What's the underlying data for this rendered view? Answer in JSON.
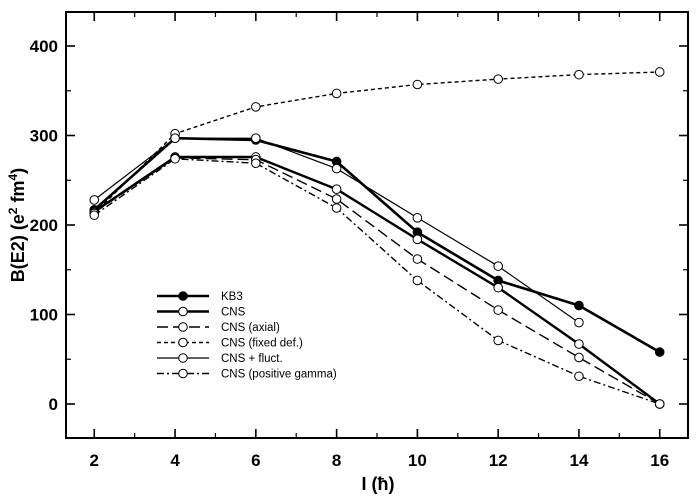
{
  "chart_data": {
    "type": "line",
    "title": "",
    "xlabel": "I (ħ)",
    "ylabel_parts": {
      "base": "B(E2) (e",
      "exp1": "2",
      "mid": " fm",
      "exp2": "4",
      "close": ")"
    },
    "xlim": [
      1.3,
      16.7
    ],
    "ylim": [
      -38,
      438
    ],
    "xticks": [
      2,
      4,
      6,
      8,
      10,
      12,
      14,
      16
    ],
    "yticks": [
      0,
      100,
      200,
      300,
      400
    ],
    "legend_position": "center-left",
    "series": [
      {
        "name": "KB3",
        "style": "kb3",
        "x": [
          2,
          4,
          6,
          8,
          10,
          12,
          14,
          16
        ],
        "y": [
          217,
          297,
          295,
          271,
          192,
          138,
          110,
          58
        ]
      },
      {
        "name": "CNS",
        "style": "cns",
        "x": [
          2,
          4,
          6,
          8,
          10,
          12,
          14,
          16
        ],
        "y": [
          215,
          276,
          276,
          240,
          184,
          130,
          67,
          0
        ]
      },
      {
        "name": "CNS (axial)",
        "style": "axial",
        "x": [
          2,
          4,
          6,
          8,
          10,
          12,
          14,
          16
        ],
        "y": [
          214,
          275,
          273,
          229,
          162,
          105,
          52,
          0
        ]
      },
      {
        "name": "CNS (fixed def.)",
        "style": "fixed",
        "x": [
          2,
          4,
          6,
          8,
          10,
          12,
          14,
          16
        ],
        "y": [
          213,
          302,
          332,
          347,
          357,
          363,
          368,
          371
        ]
      },
      {
        "name": "CNS + fluct.",
        "style": "fluct",
        "x": [
          2,
          4,
          6,
          8,
          10,
          12,
          14
        ],
        "y": [
          228,
          297,
          297,
          263,
          208,
          154,
          91
        ]
      },
      {
        "name": "CNS (positive gamma)",
        "style": "gamma",
        "x": [
          2,
          4,
          6,
          8,
          10,
          12,
          14,
          16
        ],
        "y": [
          211,
          274,
          269,
          219,
          138,
          71,
          31,
          0
        ]
      }
    ]
  }
}
